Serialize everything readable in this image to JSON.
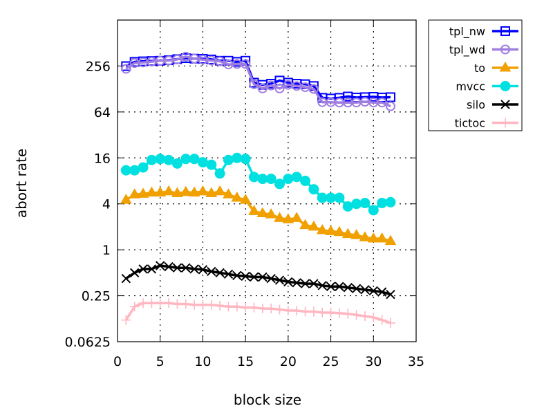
{
  "chart_data": {
    "type": "line",
    "title": "",
    "xlabel": "block size",
    "ylabel": "abort rate",
    "xlim": [
      0,
      35
    ],
    "ylim": [
      0.0625,
      1024
    ],
    "yscale": "log2",
    "grid": true,
    "legend_position": "top-right-outside",
    "x_ticks": [
      0,
      5,
      10,
      15,
      20,
      25,
      30,
      35
    ],
    "x_tick_labels": [
      "0",
      "5",
      "10",
      "15",
      "20",
      "25",
      "30",
      "35"
    ],
    "y_ticks": [
      0.0625,
      0.25,
      1,
      4,
      16,
      64,
      256
    ],
    "y_tick_labels": [
      "0.0625",
      "0.25",
      "1",
      "4",
      "16",
      "64",
      "256"
    ],
    "x": [
      1,
      2,
      3,
      4,
      5,
      6,
      7,
      8,
      9,
      10,
      11,
      12,
      13,
      14,
      15,
      16,
      17,
      18,
      19,
      20,
      21,
      22,
      23,
      24,
      25,
      26,
      27,
      28,
      29,
      30,
      31,
      32
    ],
    "series": [
      {
        "name": "tpl_nw",
        "color": "#0000ff",
        "marker": "square",
        "values": [
          255,
          290,
          295,
          298,
          300,
          305,
          315,
          325,
          320,
          318,
          312,
          300,
          300,
          290,
          300,
          155,
          145,
          150,
          165,
          155,
          150,
          148,
          140,
          98,
          96,
          98,
          102,
          99,
          100,
          101,
          99,
          100
        ]
      },
      {
        "name": "tpl_wd",
        "color": "#a07ee0",
        "marker": "circle",
        "values": [
          235,
          280,
          285,
          292,
          300,
          302,
          312,
          340,
          320,
          310,
          302,
          295,
          268,
          272,
          272,
          148,
          130,
          142,
          130,
          145,
          140,
          135,
          128,
          86,
          86,
          85,
          85,
          85,
          87,
          85,
          85,
          76
        ]
      },
      {
        "name": "to",
        "color": "#f0a000",
        "marker": "triangle",
        "values": [
          4.5,
          5.3,
          5.4,
          5.6,
          5.6,
          5.8,
          5.5,
          5.7,
          5.6,
          5.8,
          5.5,
          5.8,
          5.3,
          4.8,
          4.5,
          3.2,
          3.0,
          2.9,
          2.6,
          2.5,
          2.6,
          2.1,
          2.0,
          1.8,
          1.75,
          1.7,
          1.6,
          1.55,
          1.45,
          1.4,
          1.4,
          1.3
        ]
      },
      {
        "name": "mvcc",
        "color": "#00e0e0",
        "marker": "dot",
        "values": [
          11,
          11,
          12,
          15,
          15.5,
          15,
          13.5,
          15.5,
          15.5,
          14,
          13,
          10,
          15,
          16,
          15.5,
          9,
          8.5,
          8.5,
          7.3,
          8.5,
          9.0,
          8.0,
          6.2,
          4.8,
          4.8,
          4.8,
          3.7,
          4.0,
          4.1,
          3.3,
          4.1,
          4.2
        ]
      },
      {
        "name": "silo",
        "color": "#000000",
        "marker": "x",
        "values": [
          0.42,
          0.5,
          0.56,
          0.56,
          0.62,
          0.6,
          0.58,
          0.58,
          0.56,
          0.55,
          0.52,
          0.5,
          0.48,
          0.46,
          0.45,
          0.44,
          0.44,
          0.42,
          0.4,
          0.38,
          0.37,
          0.36,
          0.36,
          0.34,
          0.33,
          0.33,
          0.32,
          0.31,
          0.3,
          0.29,
          0.28,
          0.26
        ]
      },
      {
        "name": "tictoc",
        "color": "#ffb6c1",
        "marker": "plus",
        "values": [
          0.12,
          0.18,
          0.2,
          0.2,
          0.2,
          0.2,
          0.195,
          0.195,
          0.19,
          0.19,
          0.19,
          0.185,
          0.18,
          0.18,
          0.175,
          0.175,
          0.17,
          0.17,
          0.165,
          0.16,
          0.16,
          0.155,
          0.155,
          0.15,
          0.15,
          0.148,
          0.145,
          0.14,
          0.135,
          0.13,
          0.12,
          0.11
        ]
      }
    ]
  }
}
